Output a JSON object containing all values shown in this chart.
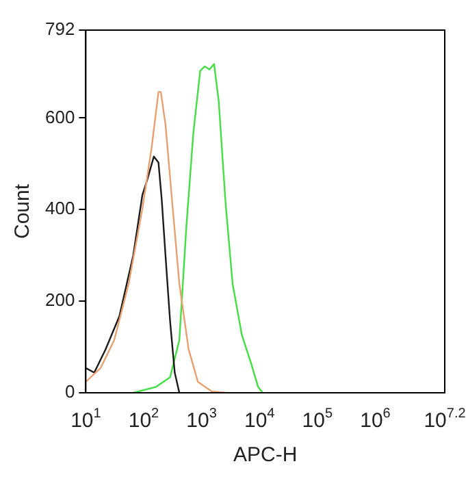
{
  "chart_data": {
    "type": "line",
    "xlabel": "APC-H",
    "ylabel": "Count",
    "log": "x",
    "grid": false,
    "legend": false,
    "marker": "none",
    "line_style": "solid",
    "xlim": [
      10,
      15848932
    ],
    "ylim": [
      0,
      792
    ],
    "xticks": [
      {
        "value": 10,
        "label": "10$^{1}$"
      },
      {
        "value": 100,
        "label": "10$^{2}$"
      },
      {
        "value": 1000,
        "label": "10$^{3}$"
      },
      {
        "value": 10000,
        "label": "10$^{4}$"
      },
      {
        "value": 100000,
        "label": "10$^{5}$"
      },
      {
        "value": 1000000,
        "label": "10$^{6}$"
      },
      {
        "value": 15848932,
        "label": "10$^{7.2}$"
      }
    ],
    "yticks": [
      0,
      200,
      400,
      600,
      792
    ],
    "series": [
      {
        "color": "#e8a070",
        "x": [
          10,
          18,
          31,
          55,
          95,
          137,
          180,
          198,
          238,
          313,
          413,
          597,
          863,
          1500,
          2606
        ],
        "values": [
          24,
          54,
          115,
          238,
          402,
          535,
          657,
          657,
          586,
          412,
          238,
          95,
          24,
          3,
          0
        ]
      },
      {
        "color": "#1a1a1a",
        "x": [
          10,
          14,
          22,
          38,
          66,
          95,
          114,
          150,
          180,
          205,
          238,
          286,
          344,
          413
        ],
        "values": [
          54,
          44,
          95,
          167,
          300,
          432,
          463,
          516,
          503,
          422,
          300,
          156,
          44,
          0
        ]
      },
      {
        "color": "#44dd44",
        "x": [
          66,
          164,
          286,
          413,
          545,
          718,
          946,
          1138,
          1368,
          1644,
          1977,
          2606,
          3436,
          4966,
          7178,
          9462,
          11376
        ],
        "values": [
          0,
          13,
          34,
          115,
          361,
          565,
          703,
          713,
          706,
          718,
          637,
          412,
          238,
          126,
          64,
          13,
          0
        ]
      }
    ]
  }
}
